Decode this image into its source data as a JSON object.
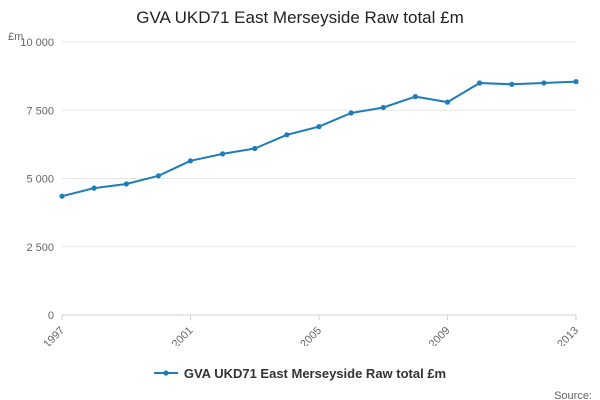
{
  "page": {
    "title": "GVA UKD71 East Merseyside Raw total £m",
    "source_label": "Source:"
  },
  "legend": {
    "label": "GVA UKD71 East Merseyside Raw total £m"
  },
  "chart_data": {
    "type": "line",
    "title": "GVA UKD71 East Merseyside Raw total £m",
    "unit_label": "£m",
    "x": [
      1997,
      1998,
      1999,
      2000,
      2001,
      2002,
      2003,
      2004,
      2005,
      2006,
      2007,
      2008,
      2009,
      2010,
      2011,
      2012,
      2013
    ],
    "series": [
      {
        "name": "GVA UKD71 East Merseyside Raw total £m",
        "values": [
          4350,
          4650,
          4800,
          5100,
          5650,
          5900,
          6100,
          6600,
          6900,
          7400,
          7600,
          8000,
          7800,
          8500,
          8450,
          8500,
          8550
        ]
      }
    ],
    "ylim": [
      0,
      10000
    ],
    "yticks": [
      0,
      2500,
      5000,
      7500,
      10000
    ],
    "ytick_labels": [
      "0",
      "2 500",
      "5 000",
      "7 500",
      "10 000"
    ],
    "xticks": [
      1997,
      2001,
      2005,
      2009,
      2013
    ],
    "grid": true,
    "legend_position": "bottom",
    "line_color": "#1e7cb8",
    "grid_color": "#e6e6e6",
    "axis_color": "#ccd1d9",
    "tick_label_color": "#666666"
  }
}
